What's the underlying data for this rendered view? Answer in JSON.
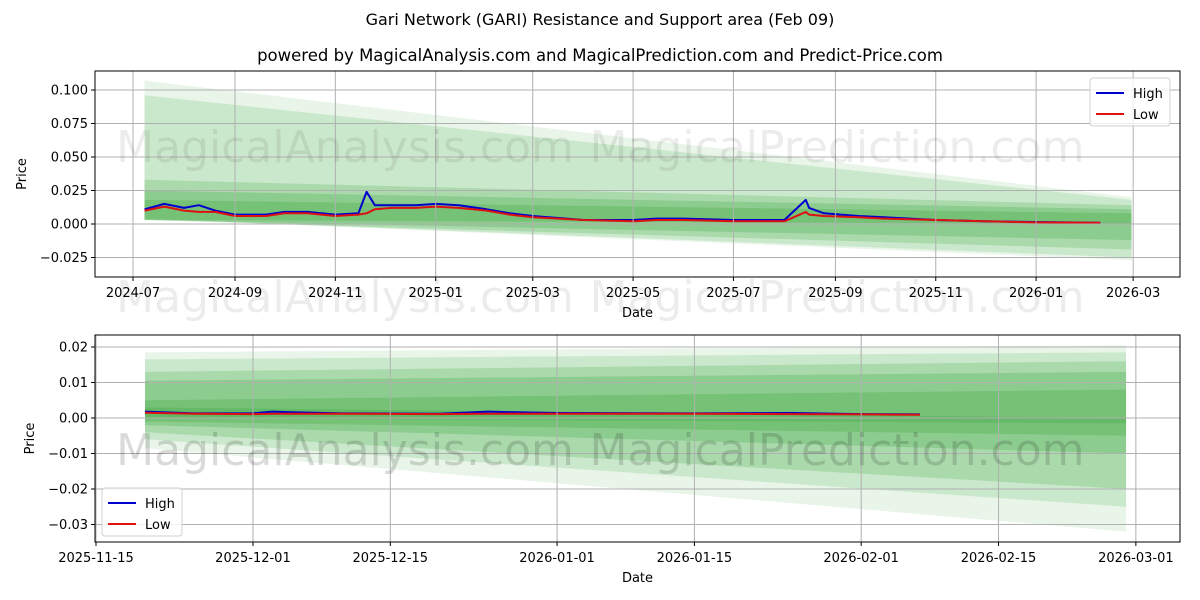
{
  "header": {
    "title": "Gari Network (GARI) Resistance and Support area (Feb 09)",
    "subtitle": "powered by MagicalAnalysis.com and MagicalPrediction.com and Predict-Price.com"
  },
  "watermarks": [
    "MagicalAnalysis.com",
    "MagicalPrediction.com"
  ],
  "colors": {
    "high": "#0000cc",
    "low": "#dd1111",
    "band": "#4caf50",
    "grid": "#b0b0b0"
  },
  "chart_data": [
    {
      "type": "line",
      "title": "Gari Network (GARI) Resistance and Support area (Feb 09)",
      "xlabel": "Date",
      "ylabel": "Price",
      "x_ticks": [
        "2024-07",
        "2024-09",
        "2024-11",
        "2025-01",
        "2025-03",
        "2025-05",
        "2025-07",
        "2025-09",
        "2025-11",
        "2026-01",
        "2026-03"
      ],
      "y_ticks": [
        "0.100",
        "0.075",
        "0.050",
        "0.025",
        "0.000",
        "−0.025"
      ],
      "ylim": [
        -0.038,
        0.115
      ],
      "grid": true,
      "legend": {
        "position": "upper right",
        "entries": [
          "High",
          "Low"
        ]
      },
      "x": [
        "2024-07-08",
        "2024-07-20",
        "2024-08-01",
        "2024-08-10",
        "2024-08-20",
        "2024-09-01",
        "2024-09-20",
        "2024-10-01",
        "2024-10-15",
        "2024-11-01",
        "2024-11-15",
        "2024-11-20",
        "2024-11-25",
        "2024-12-05",
        "2024-12-20",
        "2025-01-01",
        "2025-01-15",
        "2025-02-01",
        "2025-02-15",
        "2025-03-01",
        "2025-04-01",
        "2025-05-01",
        "2025-05-15",
        "2025-06-01",
        "2025-07-01",
        "2025-08-01",
        "2025-08-14",
        "2025-08-16",
        "2025-08-25",
        "2025-09-15",
        "2025-10-01",
        "2025-11-01",
        "2025-12-01",
        "2026-01-01",
        "2026-02-09"
      ],
      "series": [
        {
          "name": "High",
          "values": [
            0.011,
            0.015,
            0.012,
            0.014,
            0.01,
            0.007,
            0.007,
            0.009,
            0.009,
            0.007,
            0.008,
            0.024,
            0.014,
            0.014,
            0.014,
            0.015,
            0.014,
            0.011,
            0.008,
            0.006,
            0.003,
            0.003,
            0.004,
            0.004,
            0.003,
            0.003,
            0.018,
            0.012,
            0.008,
            0.006,
            0.005,
            0.003,
            0.002,
            0.0015,
            0.001
          ]
        },
        {
          "name": "Low",
          "values": [
            0.01,
            0.013,
            0.01,
            0.009,
            0.009,
            0.006,
            0.006,
            0.008,
            0.008,
            0.006,
            0.007,
            0.008,
            0.011,
            0.012,
            0.012,
            0.013,
            0.012,
            0.01,
            0.007,
            0.005,
            0.003,
            0.002,
            0.003,
            0.003,
            0.002,
            0.002,
            0.009,
            0.007,
            0.006,
            0.005,
            0.004,
            0.003,
            0.002,
            0.0012,
            0.001
          ]
        }
      ],
      "bands": {
        "x_start": "2024-07-08",
        "x_end": "2026-02-28",
        "upper_start": [
          0.107,
          0.096,
          0.033,
          0.025,
          0.018
        ],
        "upper_end": [
          0.02,
          0.018,
          0.014,
          0.011,
          0.008
        ],
        "lower_start": [
          0.004,
          0.004,
          0.003,
          0.003,
          0.003
        ],
        "lower_end": [
          -0.027,
          -0.025,
          -0.019,
          -0.012,
          0.0
        ]
      }
    },
    {
      "type": "line",
      "xlabel": "Date",
      "ylabel": "Price",
      "x_ticks": [
        "2025-11-15",
        "2025-12-01",
        "2025-12-15",
        "2026-01-01",
        "2026-01-15",
        "2026-02-01",
        "2026-02-15",
        "2026-03-01"
      ],
      "y_ticks": [
        "0.02",
        "0.01",
        "0.00",
        "−0.01",
        "−0.02",
        "−0.03"
      ],
      "ylim": [
        -0.035,
        0.023
      ],
      "grid": true,
      "legend": {
        "position": "lower left",
        "entries": [
          "High",
          "Low"
        ]
      },
      "x": [
        "2025-11-20",
        "2025-11-25",
        "2025-12-01",
        "2025-12-03",
        "2025-12-05",
        "2025-12-10",
        "2025-12-20",
        "2025-12-25",
        "2025-12-28",
        "2026-01-01",
        "2026-01-15",
        "2026-01-25",
        "2026-02-01",
        "2026-02-07"
      ],
      "series": [
        {
          "name": "High",
          "values": [
            0.0018,
            0.0013,
            0.0013,
            0.0018,
            0.0016,
            0.0013,
            0.0012,
            0.0018,
            0.0016,
            0.0014,
            0.0013,
            0.0014,
            0.0011,
            0.001
          ]
        },
        {
          "name": "Low",
          "values": [
            0.0015,
            0.0012,
            0.0011,
            0.0012,
            0.0012,
            0.0012,
            0.0011,
            0.0012,
            0.0012,
            0.0012,
            0.0012,
            0.0011,
            0.001,
            0.0009
          ]
        }
      ],
      "bands": {
        "x_start": "2025-11-20",
        "x_end": "2026-02-28",
        "upper_start": [
          0.0185,
          0.0165,
          0.013,
          0.0105,
          0.005,
          0.003
        ],
        "upper_end": [
          0.0205,
          0.0185,
          0.016,
          0.013,
          0.008,
          0.0
        ],
        "lower_start": [
          -0.0085,
          -0.006,
          -0.004,
          -0.002,
          -0.001,
          0.0
        ],
        "lower_end": [
          -0.032,
          -0.025,
          -0.02,
          -0.01,
          -0.005,
          -0.0015
        ]
      }
    }
  ]
}
